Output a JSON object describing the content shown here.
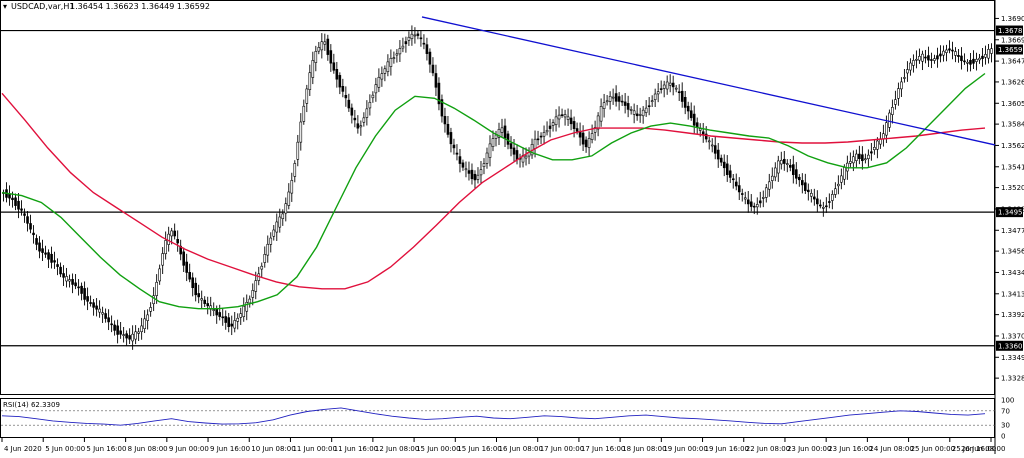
{
  "header": {
    "symbol": "USDCAD,var,H1",
    "ohlc": "1.36454 1.36623 1.36449 1.36592"
  },
  "chart_data": {
    "type": "candlestick",
    "title": "USDCAD,var,H1",
    "x_labels": [
      "4 Jun 2020",
      "5 Jun 00:00",
      "5 Jun 16:00",
      "8 Jun 08:00",
      "9 Jun 00:00",
      "9 Jun 16:00",
      "10 Jun 08:00",
      "11 Jun 00:00",
      "11 Jun 16:00",
      "12 Jun 08:00",
      "15 Jun 00:00",
      "15 Jun 16:00",
      "16 Jun 08:00",
      "17 Jun 00:00",
      "17 Jun 16:00",
      "18 Jun 08:00",
      "19 Jun 00:00",
      "19 Jun 16:00",
      "22 Jun 08:00",
      "23 Jun 00:00",
      "23 Jun 16:00",
      "24 Jun 08:00",
      "25 Jun 00:00",
      "25 Jun 16:00",
      "26 Jun 08:00"
    ],
    "y_ticks": [
      "1.36905",
      "1.36690",
      "1.36475",
      "1.36265",
      "1.36050",
      "1.35840",
      "1.35625",
      "1.35410",
      "1.35200",
      "1.34985",
      "1.34770",
      "1.34560",
      "1.34345",
      "1.34130",
      "1.33920",
      "1.33705",
      "1.33490",
      "1.33280"
    ],
    "ylim": [
      1.3312,
      1.3699
    ],
    "price_path": [
      1.3515,
      1.3508,
      1.3498,
      1.3482,
      1.346,
      1.3452,
      1.3445,
      1.343,
      1.3425,
      1.3418,
      1.3405,
      1.3398,
      1.339,
      1.3378,
      1.3372,
      1.3368,
      1.3375,
      1.339,
      1.3418,
      1.3462,
      1.3478,
      1.3452,
      1.3428,
      1.341,
      1.3402,
      1.3395,
      1.3388,
      1.338,
      1.3392,
      1.3405,
      1.3428,
      1.3455,
      1.3478,
      1.3492,
      1.352,
      1.3575,
      1.3625,
      1.3658,
      1.3668,
      1.364,
      1.362,
      1.3598,
      1.3578,
      1.3598,
      1.3622,
      1.3638,
      1.365,
      1.366,
      1.3672,
      1.3675,
      1.366,
      1.363,
      1.359,
      1.3565,
      1.3545,
      1.3535,
      1.3528,
      1.3548,
      1.357,
      1.358,
      1.356,
      1.3548,
      1.3552,
      1.3568,
      1.3575,
      1.3585,
      1.3595,
      1.3588,
      1.3575,
      1.3562,
      1.358,
      1.3605,
      1.3612,
      1.3608,
      1.36,
      1.3592,
      1.3598,
      1.3612,
      1.3622,
      1.3625,
      1.3615,
      1.3598,
      1.3582,
      1.3572,
      1.356,
      1.3545,
      1.3532,
      1.3518,
      1.3505,
      1.35,
      1.3512,
      1.3532,
      1.3548,
      1.3542,
      1.353,
      1.3518,
      1.3508,
      1.3498,
      1.351,
      1.3528,
      1.3545,
      1.3552,
      1.3548,
      1.356,
      1.357,
      1.3595,
      1.362,
      1.364,
      1.365,
      1.3652,
      1.3648,
      1.3655,
      1.366,
      1.3652,
      1.3645,
      1.3648,
      1.3652,
      1.3659
    ],
    "ma_green": [
      1.3515,
      1.3512,
      1.3505,
      1.349,
      1.347,
      1.345,
      1.3432,
      1.3418,
      1.3405,
      1.34,
      1.3398,
      1.3398,
      1.34,
      1.3405,
      1.3412,
      1.343,
      1.346,
      1.35,
      1.354,
      1.3572,
      1.3598,
      1.3612,
      1.361,
      1.36,
      1.3588,
      1.3575,
      1.3565,
      1.3555,
      1.3548,
      1.3548,
      1.3552,
      1.3565,
      1.3575,
      1.3582,
      1.3585,
      1.3582,
      1.3578,
      1.3575,
      1.3572,
      1.357,
      1.3562,
      1.3552,
      1.3545,
      1.354,
      1.354,
      1.3545,
      1.356,
      1.358,
      1.36,
      1.362,
      1.3635
    ],
    "ma_red": [
      1.3615,
      1.3588,
      1.356,
      1.3535,
      1.3515,
      1.35,
      1.3485,
      1.347,
      1.3458,
      1.3448,
      1.344,
      1.3432,
      1.3425,
      1.342,
      1.3418,
      1.3418,
      1.3425,
      1.344,
      1.346,
      1.3482,
      1.3505,
      1.3525,
      1.354,
      1.3555,
      1.3568,
      1.3575,
      1.358,
      1.358,
      1.358,
      1.3578,
      1.3575,
      1.3572,
      1.357,
      1.3568,
      1.3566,
      1.3565,
      1.3565,
      1.3566,
      1.3568,
      1.357,
      1.3572,
      1.3575,
      1.3578,
      1.358
    ],
    "resistance_level": "1.36783",
    "support_mid_level": "1.34953",
    "support_low_level": "1.33606",
    "last_price": "1.36592",
    "trendline": {
      "from": 1.3692,
      "to": 1.3563,
      "color": "#1010d0"
    },
    "rsi": {
      "label": "RSI(14) 62.3309",
      "levels": [
        "100",
        "70",
        "30",
        "0"
      ],
      "values": [
        56,
        54,
        48,
        42,
        38,
        35,
        33,
        30,
        35,
        42,
        48,
        40,
        36,
        33,
        34,
        37,
        45,
        58,
        68,
        74,
        78,
        70,
        62,
        55,
        50,
        46,
        48,
        52,
        55,
        50,
        48,
        52,
        56,
        54,
        50,
        48,
        52,
        56,
        58,
        54,
        50,
        48,
        45,
        42,
        38,
        35,
        34,
        40,
        46,
        52,
        58,
        62,
        66,
        70,
        68,
        64,
        60,
        58,
        62
      ]
    },
    "colors": {
      "ma_green": "#10a010",
      "ma_red": "#e0103c",
      "trendline": "#1010d0",
      "candles": "#000000",
      "rsi_line": "#2020c0"
    }
  }
}
